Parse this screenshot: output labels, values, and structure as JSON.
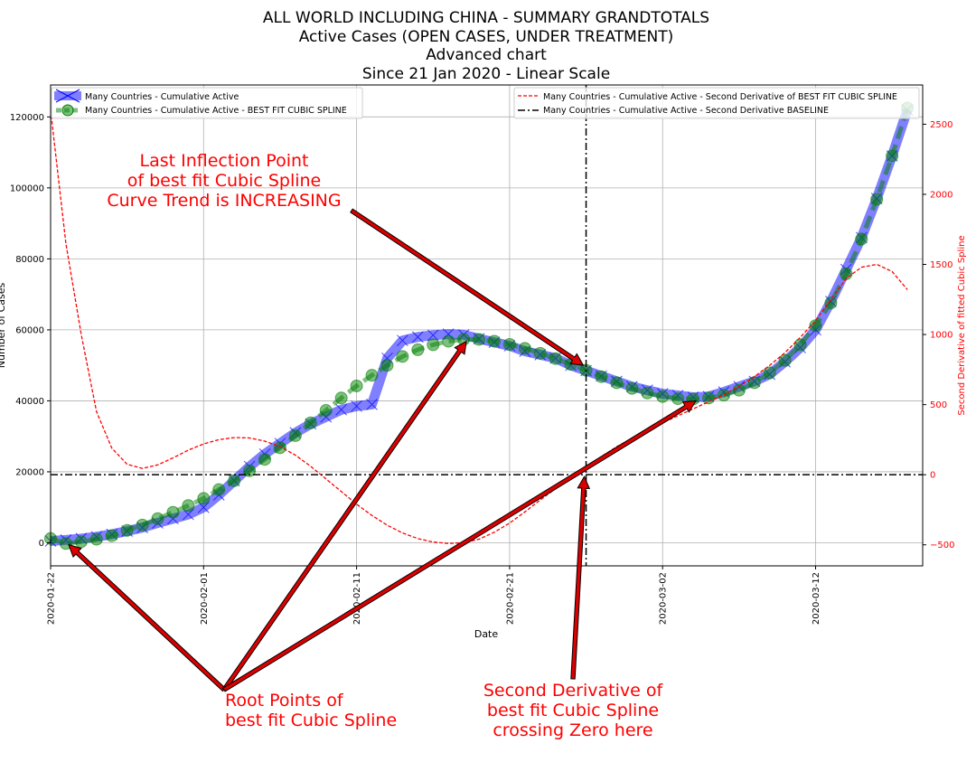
{
  "chart_data": {
    "type": "line",
    "title": [
      "ALL WORLD INCLUDING CHINA - SUMMARY GRANDTOTALS",
      "Active Cases (OPEN CASES, UNDER TREATMENT)",
      "Advanced chart",
      "Since 21 Jan 2020 - Linear Scale"
    ],
    "xlabel": "Date",
    "ylabel": "Number of Cases",
    "ylabel_right": "Second Derivative of fitted Cubic Spline",
    "x_ticks": [
      "2020-01-22",
      "2020-02-01",
      "2020-02-11",
      "2020-02-21",
      "2020-03-02",
      "2020-03-12"
    ],
    "x_range": [
      "2020-01-22",
      "2020-03-19"
    ],
    "y_ticks": [
      0,
      20000,
      40000,
      60000,
      80000,
      100000,
      120000
    ],
    "ylim": [
      -6500,
      129000
    ],
    "y2_ticks": [
      -500,
      0,
      500,
      1000,
      1500,
      2000,
      2500
    ],
    "y2lim": [
      -650,
      2780
    ],
    "grid": true,
    "colors": {
      "active": "#0000ff",
      "spline": "#008000",
      "second_derivative": "#ff0000",
      "baseline": "#000000",
      "annotation": "#ff0000",
      "arrow_fill": "#dd0000"
    },
    "legend_left": [
      "Many Countries - Cumulative Active",
      "Many Countries - Cumulative Active - BEST FIT CUBIC SPLINE"
    ],
    "legend_right": [
      "Many Countries - Cumulative Active - Second Derivative of BEST FIT CUBIC SPLINE",
      "Many Countries - Cumulative Active - Second Derivative BASELINE"
    ],
    "vertical_line_date": "2020-02-26",
    "baseline_y": 0,
    "series": [
      {
        "name": "Many Countries - Cumulative Active",
        "axis": "left",
        "points": [
          [
            "2020-01-22",
            500
          ],
          [
            "2020-01-23",
            800
          ],
          [
            "2020-01-24",
            1200
          ],
          [
            "2020-01-25",
            1700
          ],
          [
            "2020-01-26",
            2400
          ],
          [
            "2020-01-27",
            3300
          ],
          [
            "2020-01-28",
            4300
          ],
          [
            "2020-01-29",
            5600
          ],
          [
            "2020-01-30",
            6800
          ],
          [
            "2020-01-31",
            8000
          ],
          [
            "2020-02-01",
            10000
          ],
          [
            "2020-02-02",
            13500
          ],
          [
            "2020-02-03",
            17500
          ],
          [
            "2020-02-04",
            21500
          ],
          [
            "2020-02-05",
            25000
          ],
          [
            "2020-02-06",
            28000
          ],
          [
            "2020-02-07",
            31000
          ],
          [
            "2020-02-08",
            33500
          ],
          [
            "2020-02-09",
            35500
          ],
          [
            "2020-02-10",
            37500
          ],
          [
            "2020-02-11",
            38500
          ],
          [
            "2020-02-12",
            39000
          ],
          [
            "2020-02-13",
            52000
          ],
          [
            "2020-02-14",
            57000
          ],
          [
            "2020-02-15",
            58000
          ],
          [
            "2020-02-16",
            58500
          ],
          [
            "2020-02-17",
            58800
          ],
          [
            "2020-02-18",
            58600
          ],
          [
            "2020-02-19",
            57500
          ],
          [
            "2020-02-20",
            56500
          ],
          [
            "2020-02-21",
            55500
          ],
          [
            "2020-02-22",
            54000
          ],
          [
            "2020-02-23",
            53000
          ],
          [
            "2020-02-24",
            52000
          ],
          [
            "2020-02-25",
            50000
          ],
          [
            "2020-02-26",
            48500
          ],
          [
            "2020-02-27",
            47000
          ],
          [
            "2020-02-28",
            45500
          ],
          [
            "2020-02-29",
            44000
          ],
          [
            "2020-03-01",
            43000
          ],
          [
            "2020-03-02",
            42000
          ],
          [
            "2020-03-03",
            41500
          ],
          [
            "2020-03-04",
            41000
          ],
          [
            "2020-03-05",
            41200
          ],
          [
            "2020-03-06",
            42500
          ],
          [
            "2020-03-07",
            44000
          ],
          [
            "2020-03-08",
            45500
          ],
          [
            "2020-03-09",
            47500
          ],
          [
            "2020-03-10",
            51000
          ],
          [
            "2020-03-11",
            55000
          ],
          [
            "2020-03-12",
            60000
          ],
          [
            "2020-03-13",
            68000
          ],
          [
            "2020-03-14",
            77000
          ],
          [
            "2020-03-15",
            86000
          ],
          [
            "2020-03-16",
            97000
          ],
          [
            "2020-03-17",
            109000
          ],
          [
            "2020-03-18",
            122000
          ]
        ]
      },
      {
        "name": "Many Countries - Cumulative Active - BEST FIT CUBIC SPLINE",
        "axis": "left",
        "points": [
          [
            "2020-01-22",
            1200
          ],
          [
            "2020-01-23",
            -200
          ],
          [
            "2020-01-24",
            300
          ],
          [
            "2020-01-25",
            1000
          ],
          [
            "2020-01-26",
            2000
          ],
          [
            "2020-01-27",
            3500
          ],
          [
            "2020-01-28",
            5000
          ],
          [
            "2020-01-29",
            6800
          ],
          [
            "2020-01-30",
            8600
          ],
          [
            "2020-01-31",
            10500
          ],
          [
            "2020-02-01",
            12500
          ],
          [
            "2020-02-02",
            15000
          ],
          [
            "2020-02-03",
            17500
          ],
          [
            "2020-02-04",
            20300
          ],
          [
            "2020-02-05",
            23500
          ],
          [
            "2020-02-06",
            26800
          ],
          [
            "2020-02-07",
            30200
          ],
          [
            "2020-02-08",
            33800
          ],
          [
            "2020-02-09",
            37300
          ],
          [
            "2020-02-10",
            40800
          ],
          [
            "2020-02-11",
            44200
          ],
          [
            "2020-02-12",
            47200
          ],
          [
            "2020-02-13",
            50000
          ],
          [
            "2020-02-14",
            52500
          ],
          [
            "2020-02-15",
            54400
          ],
          [
            "2020-02-16",
            55800
          ],
          [
            "2020-02-17",
            56800
          ],
          [
            "2020-02-18",
            57300
          ],
          [
            "2020-02-19",
            57300
          ],
          [
            "2020-02-20",
            56800
          ],
          [
            "2020-02-21",
            55900
          ],
          [
            "2020-02-22",
            54800
          ],
          [
            "2020-02-23",
            53400
          ],
          [
            "2020-02-24",
            51900
          ],
          [
            "2020-02-25",
            50300
          ],
          [
            "2020-02-26",
            48600
          ],
          [
            "2020-02-27",
            46800
          ],
          [
            "2020-02-28",
            45100
          ],
          [
            "2020-02-29",
            43500
          ],
          [
            "2020-03-01",
            42200
          ],
          [
            "2020-03-02",
            41200
          ],
          [
            "2020-03-03",
            40600
          ],
          [
            "2020-03-04",
            40500
          ],
          [
            "2020-03-05",
            40800
          ],
          [
            "2020-03-06",
            41600
          ],
          [
            "2020-03-07",
            43000
          ],
          [
            "2020-03-08",
            45100
          ],
          [
            "2020-03-09",
            47900
          ],
          [
            "2020-03-10",
            51400
          ],
          [
            "2020-03-11",
            55800
          ],
          [
            "2020-03-12",
            61200
          ],
          [
            "2020-03-13",
            67600
          ],
          [
            "2020-03-14",
            75800
          ],
          [
            "2020-03-15",
            85600
          ],
          [
            "2020-03-16",
            96800
          ],
          [
            "2020-03-17",
            109000
          ],
          [
            "2020-03-18",
            122500
          ]
        ]
      },
      {
        "name": "Many Countries - Cumulative Active - Second Derivative of BEST FIT CUBIC SPLINE",
        "axis": "right",
        "points": [
          [
            "2020-01-22",
            2600
          ],
          [
            "2020-01-23",
            1650
          ],
          [
            "2020-01-24",
            1000
          ],
          [
            "2020-01-25",
            450
          ],
          [
            "2020-01-26",
            190
          ],
          [
            "2020-01-27",
            75
          ],
          [
            "2020-01-28",
            45
          ],
          [
            "2020-01-29",
            70
          ],
          [
            "2020-01-30",
            120
          ],
          [
            "2020-01-31",
            175
          ],
          [
            "2020-02-01",
            220
          ],
          [
            "2020-02-02",
            250
          ],
          [
            "2020-02-03",
            265
          ],
          [
            "2020-02-04",
            262
          ],
          [
            "2020-02-05",
            240
          ],
          [
            "2020-02-06",
            200
          ],
          [
            "2020-02-07",
            140
          ],
          [
            "2020-02-08",
            60
          ],
          [
            "2020-02-09",
            -30
          ],
          [
            "2020-02-10",
            -120
          ],
          [
            "2020-02-11",
            -210
          ],
          [
            "2020-02-12",
            -290
          ],
          [
            "2020-02-13",
            -360
          ],
          [
            "2020-02-14",
            -415
          ],
          [
            "2020-02-15",
            -455
          ],
          [
            "2020-02-16",
            -480
          ],
          [
            "2020-02-17",
            -490
          ],
          [
            "2020-02-18",
            -485
          ],
          [
            "2020-02-19",
            -460
          ],
          [
            "2020-02-20",
            -410
          ],
          [
            "2020-02-21",
            -345
          ],
          [
            "2020-02-22",
            -265
          ],
          [
            "2020-02-23",
            -180
          ],
          [
            "2020-02-24",
            -100
          ],
          [
            "2020-02-25",
            -20
          ],
          [
            "2020-02-26",
            60
          ],
          [
            "2020-02-27",
            130
          ],
          [
            "2020-02-28",
            200
          ],
          [
            "2020-02-29",
            260
          ],
          [
            "2020-03-01",
            320
          ],
          [
            "2020-03-02",
            370
          ],
          [
            "2020-03-03",
            420
          ],
          [
            "2020-03-04",
            470
          ],
          [
            "2020-03-05",
            520
          ],
          [
            "2020-03-06",
            570
          ],
          [
            "2020-03-07",
            630
          ],
          [
            "2020-03-08",
            700
          ],
          [
            "2020-03-09",
            780
          ],
          [
            "2020-03-10",
            870
          ],
          [
            "2020-03-11",
            980
          ],
          [
            "2020-03-12",
            1100
          ],
          [
            "2020-03-13",
            1250
          ],
          [
            "2020-03-14",
            1400
          ],
          [
            "2020-03-15",
            1480
          ],
          [
            "2020-03-16",
            1500
          ],
          [
            "2020-03-17",
            1450
          ],
          [
            "2020-03-18",
            1320
          ]
        ]
      }
    ],
    "annotations": [
      {
        "id": "inflection",
        "lines": [
          "Last Inflection Point",
          "of best fit Cubic Spline",
          "Curve Trend is INCREASING"
        ],
        "target": [
          "2020-02-26",
          48500
        ]
      },
      {
        "id": "roots",
        "lines": [
          "Root Points of",
          "best fit Cubic Spline"
        ],
        "targets": [
          [
            "2020-01-23",
            0
          ],
          [
            "2020-02-18",
            57300
          ],
          [
            "2020-03-04",
            40500
          ]
        ]
      },
      {
        "id": "second-derivative-zero",
        "lines": [
          "Second Derivative of",
          "best fit Cubic Spline",
          "crossing Zero here"
        ],
        "target": [
          "2020-02-26",
          0
        ]
      }
    ]
  }
}
